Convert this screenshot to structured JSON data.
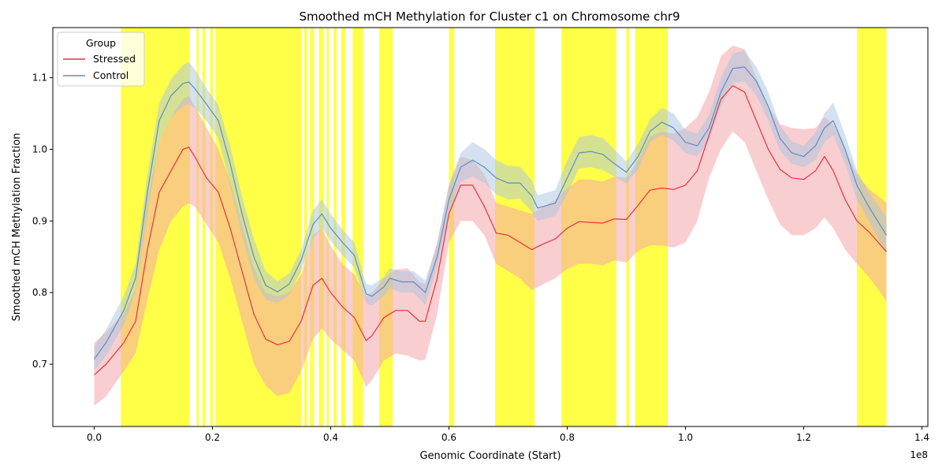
{
  "chart_data": {
    "type": "line",
    "title": "Smoothed mCH Methylation for Cluster c1 on Chromosome chr9",
    "xlabel": "Genomic Coordinate (Start)",
    "ylabel": "Smoothed mCH Methylation Fraction",
    "x_offset_text": "1e8",
    "xlim": [
      -0.07,
      1.41
    ],
    "ylim": [
      0.613,
      1.17
    ],
    "x_ticks": [
      0.0,
      0.2,
      0.4,
      0.6,
      0.8,
      1.0,
      1.2,
      1.4
    ],
    "x_tick_labels": [
      "0.0",
      "0.2",
      "0.4",
      "0.6",
      "0.8",
      "1.0",
      "1.2",
      "1.4"
    ],
    "y_ticks": [
      0.7,
      0.8,
      0.9,
      1.0,
      1.1
    ],
    "y_tick_labels": [
      "0.7",
      "0.8",
      "0.9",
      "1.0",
      "1.1"
    ],
    "grid": false,
    "legend": {
      "title": "Group",
      "placement": "upper-left"
    },
    "highlight_color": "#ffff00",
    "highlight_regions": [
      [
        0.045,
        0.162
      ],
      [
        0.173,
        0.177
      ],
      [
        0.183,
        0.188
      ],
      [
        0.196,
        0.201
      ],
      [
        0.205,
        0.31
      ],
      [
        0.31,
        0.35
      ],
      [
        0.355,
        0.36
      ],
      [
        0.365,
        0.372
      ],
      [
        0.38,
        0.388
      ],
      [
        0.393,
        0.397
      ],
      [
        0.405,
        0.41
      ],
      [
        0.418,
        0.425
      ],
      [
        0.437,
        0.455
      ],
      [
        0.482,
        0.505
      ],
      [
        0.6,
        0.609
      ],
      [
        0.678,
        0.745
      ],
      [
        0.79,
        0.883
      ],
      [
        0.9,
        0.905
      ],
      [
        0.915,
        0.97
      ],
      [
        1.29,
        1.34
      ]
    ],
    "series": [
      {
        "name": "Stressed",
        "color": "#e8323c",
        "band_color": "#f4a6aa",
        "x": [
          0.0,
          0.02,
          0.05,
          0.07,
          0.09,
          0.11,
          0.13,
          0.15,
          0.16,
          0.17,
          0.19,
          0.21,
          0.23,
          0.25,
          0.27,
          0.29,
          0.31,
          0.33,
          0.35,
          0.37,
          0.385,
          0.4,
          0.42,
          0.44,
          0.46,
          0.47,
          0.49,
          0.51,
          0.53,
          0.55,
          0.56,
          0.58,
          0.6,
          0.62,
          0.64,
          0.66,
          0.68,
          0.7,
          0.72,
          0.74,
          0.76,
          0.78,
          0.8,
          0.82,
          0.84,
          0.86,
          0.88,
          0.9,
          0.92,
          0.94,
          0.96,
          0.98,
          1.0,
          1.02,
          1.04,
          1.06,
          1.08,
          1.1,
          1.12,
          1.14,
          1.16,
          1.18,
          1.2,
          1.22,
          1.235,
          1.25,
          1.27,
          1.29,
          1.31,
          1.34
        ],
        "y": [
          0.685,
          0.7,
          0.73,
          0.76,
          0.86,
          0.94,
          0.97,
          1.0,
          1.003,
          0.99,
          0.96,
          0.94,
          0.89,
          0.83,
          0.77,
          0.735,
          0.727,
          0.732,
          0.76,
          0.81,
          0.82,
          0.8,
          0.78,
          0.765,
          0.733,
          0.74,
          0.765,
          0.775,
          0.775,
          0.76,
          0.76,
          0.82,
          0.91,
          0.95,
          0.95,
          0.92,
          0.883,
          0.88,
          0.87,
          0.86,
          0.868,
          0.875,
          0.89,
          0.899,
          0.898,
          0.897,
          0.903,
          0.902,
          0.922,
          0.943,
          0.946,
          0.944,
          0.95,
          0.97,
          1.02,
          1.07,
          1.089,
          1.08,
          1.04,
          1.0,
          0.972,
          0.96,
          0.958,
          0.97,
          0.99,
          0.97,
          0.93,
          0.9,
          0.885,
          0.857
        ],
        "lower": [
          0.642,
          0.655,
          0.69,
          0.715,
          0.79,
          0.86,
          0.9,
          0.92,
          0.925,
          0.92,
          0.895,
          0.87,
          0.82,
          0.76,
          0.7,
          0.67,
          0.655,
          0.66,
          0.69,
          0.735,
          0.75,
          0.735,
          0.72,
          0.705,
          0.668,
          0.678,
          0.705,
          0.715,
          0.712,
          0.705,
          0.706,
          0.77,
          0.87,
          0.9,
          0.9,
          0.88,
          0.84,
          0.83,
          0.82,
          0.803,
          0.812,
          0.82,
          0.833,
          0.84,
          0.84,
          0.838,
          0.845,
          0.842,
          0.858,
          0.866,
          0.866,
          0.863,
          0.87,
          0.9,
          0.96,
          1.0,
          1.025,
          1.01,
          0.97,
          0.93,
          0.895,
          0.88,
          0.88,
          0.89,
          0.905,
          0.89,
          0.86,
          0.84,
          0.822,
          0.788
        ],
        "upper": [
          0.73,
          0.745,
          0.77,
          0.805,
          0.93,
          1.01,
          1.045,
          1.07,
          1.075,
          1.06,
          1.03,
          1.0,
          0.955,
          0.895,
          0.835,
          0.8,
          0.795,
          0.8,
          0.825,
          0.88,
          0.89,
          0.865,
          0.84,
          0.825,
          0.795,
          0.8,
          0.82,
          0.832,
          0.834,
          0.815,
          0.812,
          0.87,
          0.95,
          0.99,
          0.985,
          0.965,
          0.925,
          0.92,
          0.915,
          0.91,
          0.92,
          0.93,
          0.945,
          0.958,
          0.958,
          0.955,
          0.962,
          0.96,
          0.985,
          1.018,
          1.025,
          1.022,
          1.03,
          1.045,
          1.08,
          1.13,
          1.145,
          1.14,
          1.1,
          1.06,
          1.035,
          1.03,
          1.028,
          1.03,
          1.045,
          1.035,
          1.0,
          0.965,
          0.945,
          0.925
        ]
      },
      {
        "name": "Control",
        "color": "#5b8ec4",
        "band_color": "#a9c4e0",
        "x": [
          0.0,
          0.02,
          0.05,
          0.07,
          0.09,
          0.11,
          0.13,
          0.15,
          0.16,
          0.17,
          0.19,
          0.21,
          0.23,
          0.25,
          0.27,
          0.29,
          0.31,
          0.33,
          0.35,
          0.37,
          0.385,
          0.4,
          0.42,
          0.44,
          0.46,
          0.47,
          0.49,
          0.5,
          0.52,
          0.54,
          0.56,
          0.58,
          0.6,
          0.62,
          0.64,
          0.66,
          0.68,
          0.7,
          0.72,
          0.74,
          0.75,
          0.78,
          0.8,
          0.82,
          0.84,
          0.86,
          0.88,
          0.9,
          0.92,
          0.94,
          0.96,
          0.98,
          1.0,
          1.02,
          1.04,
          1.06,
          1.08,
          1.1,
          1.12,
          1.14,
          1.16,
          1.18,
          1.2,
          1.22,
          1.235,
          1.25,
          1.27,
          1.29,
          1.31,
          1.34
        ],
        "y": [
          0.707,
          0.73,
          0.775,
          0.82,
          0.94,
          1.04,
          1.075,
          1.092,
          1.094,
          1.085,
          1.063,
          1.04,
          0.98,
          0.91,
          0.85,
          0.81,
          0.801,
          0.812,
          0.845,
          0.895,
          0.91,
          0.89,
          0.87,
          0.852,
          0.798,
          0.795,
          0.808,
          0.82,
          0.815,
          0.815,
          0.8,
          0.85,
          0.93,
          0.975,
          0.985,
          0.975,
          0.96,
          0.953,
          0.953,
          0.935,
          0.918,
          0.925,
          0.96,
          0.995,
          0.997,
          0.993,
          0.98,
          0.968,
          0.99,
          1.025,
          1.038,
          1.03,
          1.01,
          1.005,
          1.03,
          1.08,
          1.113,
          1.115,
          1.095,
          1.06,
          1.015,
          0.995,
          0.99,
          1.005,
          1.03,
          1.04,
          1.0,
          0.95,
          0.92,
          0.88
        ],
        "lower": [
          0.69,
          0.712,
          0.755,
          0.8,
          0.91,
          1.01,
          1.045,
          1.06,
          1.063,
          1.058,
          1.04,
          1.015,
          0.95,
          0.88,
          0.82,
          0.79,
          0.786,
          0.797,
          0.83,
          0.875,
          0.89,
          0.872,
          0.852,
          0.835,
          0.785,
          0.782,
          0.795,
          0.806,
          0.8,
          0.8,
          0.783,
          0.835,
          0.91,
          0.955,
          0.962,
          0.953,
          0.937,
          0.93,
          0.931,
          0.913,
          0.9,
          0.907,
          0.938,
          0.973,
          0.975,
          0.971,
          0.962,
          0.952,
          0.972,
          1.01,
          1.02,
          1.012,
          0.995,
          0.99,
          1.012,
          1.06,
          1.092,
          1.095,
          1.075,
          1.04,
          0.998,
          0.98,
          0.975,
          0.985,
          1.01,
          1.02,
          0.98,
          0.93,
          0.9,
          0.855
        ],
        "upper": [
          0.725,
          0.748,
          0.795,
          0.84,
          0.965,
          1.065,
          1.098,
          1.118,
          1.122,
          1.112,
          1.085,
          1.062,
          1.005,
          0.935,
          0.875,
          0.83,
          0.816,
          0.827,
          0.86,
          0.915,
          0.93,
          0.91,
          0.888,
          0.87,
          0.812,
          0.81,
          0.822,
          0.834,
          0.83,
          0.83,
          0.817,
          0.868,
          0.95,
          0.995,
          1.01,
          1.0,
          0.985,
          0.977,
          0.976,
          0.957,
          0.936,
          0.943,
          0.985,
          1.017,
          1.02,
          1.016,
          1.0,
          0.983,
          1.008,
          1.042,
          1.058,
          1.05,
          1.027,
          1.022,
          1.048,
          1.1,
          1.134,
          1.138,
          1.115,
          1.08,
          1.033,
          1.011,
          1.005,
          1.024,
          1.05,
          1.065,
          1.02,
          0.97,
          0.94,
          0.905
        ]
      }
    ]
  }
}
